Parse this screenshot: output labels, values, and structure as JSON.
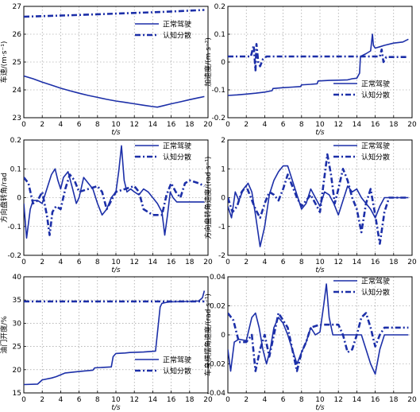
{
  "figure": {
    "colors": {
      "line": "#1c2fa8",
      "axis": "#000000",
      "grid": "#8a8a8a",
      "background": "#ffffff"
    }
  },
  "chart_data": [
    {
      "id": "speed",
      "type": "line",
      "ylabel": "车速/(m·s⁻¹)",
      "xlabel": "t/s",
      "xlim": [
        0,
        20
      ],
      "ylim": [
        23,
        27
      ],
      "xticks": [
        0,
        2,
        4,
        6,
        8,
        10,
        12,
        14,
        16,
        18,
        20
      ],
      "yticks": [
        23,
        24,
        25,
        26,
        27
      ],
      "grid": true,
      "legend": "top-right",
      "series": [
        {
          "name": "正常驾驶",
          "style": "solid",
          "x": [
            0,
            1,
            2,
            3,
            4,
            5,
            6,
            7,
            8,
            9,
            10,
            11,
            12,
            13,
            14,
            14.5,
            15,
            16,
            17,
            18,
            19,
            19.6
          ],
          "y": [
            24.5,
            24.4,
            24.28,
            24.17,
            24.06,
            23.97,
            23.88,
            23.8,
            23.73,
            23.66,
            23.6,
            23.55,
            23.5,
            23.45,
            23.4,
            23.38,
            23.42,
            23.5,
            23.57,
            23.65,
            23.72,
            23.76
          ]
        },
        {
          "name": "认知分散",
          "style": "dashdot",
          "x": [
            0,
            5,
            10,
            15,
            19.6
          ],
          "y": [
            26.63,
            26.68,
            26.74,
            26.8,
            26.87
          ]
        }
      ]
    },
    {
      "id": "accel",
      "type": "line",
      "ylabel": "加速度/(m·s⁻²)",
      "xlabel": "t/s",
      "xlim": [
        0,
        20
      ],
      "ylim": [
        -0.2,
        0.2
      ],
      "xticks": [
        0,
        2,
        4,
        6,
        8,
        10,
        12,
        14,
        16,
        18,
        20
      ],
      "yticks": [
        -0.2,
        -0.1,
        0,
        0.1,
        0.2
      ],
      "ytick_labels": [
        "-0.2",
        "-0.1",
        "0",
        "0.1",
        "0.2"
      ],
      "grid": true,
      "legend": "lower-right",
      "series": [
        {
          "name": "正常驾驶",
          "style": "solid",
          "x": [
            0,
            1,
            2,
            3,
            4,
            4.8,
            4.9,
            6,
            7,
            7.9,
            8,
            9,
            9.7,
            9.8,
            11,
            12,
            13,
            13.5,
            14,
            14.3,
            14.4,
            15,
            15.5,
            15.7,
            15.8,
            16,
            16.5,
            17,
            18,
            19,
            19.6
          ],
          "y": [
            -0.12,
            -0.118,
            -0.115,
            -0.112,
            -0.108,
            -0.103,
            -0.095,
            -0.092,
            -0.09,
            -0.088,
            -0.082,
            -0.08,
            -0.078,
            -0.068,
            -0.066,
            -0.065,
            -0.064,
            -0.06,
            -0.058,
            -0.04,
            0.02,
            0.03,
            0.04,
            0.1,
            0.06,
            0.05,
            0.055,
            0.06,
            0.068,
            0.072,
            0.082
          ]
        },
        {
          "name": "认知分散",
          "style": "dashdot",
          "x": [
            0,
            2.5,
            2.8,
            3,
            3.1,
            3.3,
            3.5,
            3.8,
            4.2,
            5,
            10,
            15,
            16.5,
            16.7,
            16.9,
            17.2,
            19.6
          ],
          "y": [
            0.02,
            0.02,
            0.06,
            -0.03,
            0.065,
            0.0,
            -0.015,
            0.01,
            0.02,
            0.02,
            0.02,
            0.02,
            0.02,
            0.045,
            0.0,
            0.018,
            0.018
          ]
        }
      ]
    },
    {
      "id": "steer_angle",
      "type": "line",
      "ylabel": "方向盘转角/rad",
      "xlabel": "t/s",
      "xlim": [
        0,
        20
      ],
      "ylim": [
        -0.2,
        0.2
      ],
      "xticks": [
        0,
        2,
        4,
        6,
        8,
        10,
        12,
        14,
        16,
        18,
        20
      ],
      "yticks": [
        -0.2,
        -0.1,
        0,
        0.1,
        0.2
      ],
      "ytick_labels": [
        "-0.2",
        "-0.1",
        "0",
        "0.1",
        "0.2"
      ],
      "grid": true,
      "legend": "top-right",
      "series": [
        {
          "name": "正常驾驶",
          "style": "solid",
          "x": [
            0,
            0.3,
            0.7,
            1,
            1.5,
            2,
            2.5,
            3,
            3.4,
            3.7,
            4,
            4.3,
            4.8,
            5.3,
            5.7,
            6,
            6.5,
            7,
            7.5,
            8,
            8.5,
            9,
            9.5,
            10,
            10.3,
            10.6,
            10.9,
            11.2,
            11.6,
            12,
            12.5,
            13,
            13.5,
            14,
            14.5,
            15,
            15.3,
            15.6,
            15.9,
            16.2,
            16.6,
            17,
            18,
            19,
            19.6
          ],
          "y": [
            -0.02,
            -0.14,
            -0.04,
            -0.01,
            -0.01,
            -0.02,
            0.03,
            0.08,
            0.1,
            0.06,
            0.03,
            0.07,
            0.09,
            0.03,
            -0.02,
            0.0,
            0.07,
            0.05,
            0.03,
            -0.02,
            -0.06,
            -0.04,
            0.0,
            0.02,
            0.09,
            0.18,
            0.06,
            0.02,
            0.03,
            0.02,
            0.01,
            0.03,
            0.02,
            0.0,
            -0.02,
            -0.05,
            -0.13,
            -0.06,
            0.02,
            0.0,
            -0.015,
            -0.015,
            -0.015,
            -0.015,
            -0.015
          ]
        },
        {
          "name": "认知分散",
          "style": "dashdot",
          "x": [
            0,
            0.5,
            1,
            1.5,
            2,
            2.5,
            2.8,
            3.1,
            3.5,
            4,
            4.5,
            5,
            5.5,
            6,
            7,
            8,
            8.5,
            9,
            9.5,
            10,
            11,
            12,
            12.5,
            13,
            14,
            14.5,
            15,
            15.5,
            16,
            16.5,
            17,
            17.5,
            18,
            19,
            19.6
          ],
          "y": [
            0.07,
            0.05,
            -0.02,
            -0.01,
            0.02,
            -0.06,
            -0.13,
            -0.05,
            -0.03,
            -0.04,
            0.03,
            0.08,
            0.06,
            0.02,
            0.03,
            0.04,
            0.02,
            -0.04,
            -0.01,
            0.02,
            0.03,
            0.04,
            0.02,
            -0.04,
            -0.06,
            -0.06,
            -0.06,
            0.01,
            0.05,
            0.02,
            0.0,
            0.05,
            0.06,
            0.05,
            0.04
          ]
        }
      ]
    },
    {
      "id": "steer_rate",
      "type": "line",
      "ylabel": "方向盘转角速度/(rad·s⁻¹)",
      "xlabel": "t/s",
      "xlim": [
        0,
        20
      ],
      "ylim": [
        -2,
        2
      ],
      "xticks": [
        0,
        2,
        4,
        6,
        8,
        10,
        12,
        14,
        16,
        18,
        20
      ],
      "yticks": [
        -2,
        -1,
        0,
        1,
        2
      ],
      "ytick_labels": [
        "-2",
        "-1",
        "0",
        "1",
        "2"
      ],
      "grid": true,
      "legend": "top-right",
      "series": [
        {
          "name": "正常驾驶",
          "style": "solid",
          "x": [
            0,
            0.4,
            0.8,
            1.2,
            1.7,
            2.2,
            2.6,
            3,
            3.5,
            4,
            4.5,
            5,
            5.5,
            6,
            6.5,
            7,
            7.5,
            8,
            8.5,
            9,
            9.5,
            10,
            10.5,
            11,
            11.5,
            12,
            12.5,
            13,
            13.5,
            14,
            14.5,
            15,
            15.5,
            16,
            16.5,
            17,
            17.5,
            18,
            19,
            19.6
          ],
          "y": [
            -0.3,
            -0.7,
            0.2,
            -0.1,
            0.3,
            0.5,
            0.2,
            -0.6,
            -1.7,
            -1.0,
            0.1,
            0.6,
            0.9,
            1.1,
            1.1,
            0.6,
            0.1,
            -0.4,
            -0.2,
            0.3,
            0.0,
            -0.3,
            0.2,
            0.1,
            -0.2,
            -0.6,
            -0.1,
            0.4,
            0.2,
            0.3,
            0.0,
            -0.2,
            -0.4,
            -0.7,
            -0.3,
            0.0,
            0.0,
            0.0,
            0.0,
            0.0
          ]
        },
        {
          "name": "认知分散",
          "style": "dashdot",
          "x": [
            0,
            0.5,
            1,
            1.5,
            2,
            2.5,
            3,
            3.5,
            4,
            4.5,
            5,
            5.5,
            6,
            6.5,
            7,
            7.5,
            8,
            8.5,
            9,
            9.5,
            10,
            10.4,
            10.8,
            11.2,
            11.6,
            12,
            12.5,
            13,
            13.5,
            14,
            14.5,
            15,
            15.5,
            16,
            16.5,
            17,
            17.5,
            18,
            19,
            19.6
          ],
          "y": [
            0.0,
            -0.5,
            -0.3,
            0.2,
            0.4,
            0.0,
            -0.4,
            -0.7,
            -0.2,
            0.2,
            0.1,
            -0.1,
            0.3,
            0.8,
            0.4,
            0.0,
            -0.3,
            -0.1,
            0.1,
            -0.2,
            -0.5,
            0.5,
            1.5,
            0.8,
            -0.2,
            0.3,
            1.0,
            0.6,
            0.0,
            -0.4,
            -1.2,
            -0.2,
            0.3,
            -0.6,
            -1.6,
            -0.5,
            0.0,
            0.0,
            0.0,
            0.0
          ]
        }
      ]
    },
    {
      "id": "throttle",
      "type": "line",
      "ylabel": "油门开度/%",
      "xlabel": "t/s",
      "xlim": [
        0,
        20
      ],
      "ylim": [
        15,
        40
      ],
      "xticks": [
        0,
        2,
        4,
        6,
        8,
        10,
        12,
        14,
        16,
        18,
        20
      ],
      "yticks": [
        15,
        20,
        25,
        30,
        35,
        40
      ],
      "grid": true,
      "legend": "lower-right",
      "series": [
        {
          "name": "正常驾驶",
          "style": "solid",
          "x": [
            0,
            1.5,
            2,
            3,
            3.5,
            4.5,
            5,
            6,
            7.5,
            7.7,
            9.5,
            9.7,
            10,
            11,
            11.5,
            13,
            14.3,
            14.8,
            15,
            15.5,
            16,
            18,
            19,
            19.4,
            19.6
          ],
          "y": [
            16.8,
            16.9,
            17.8,
            18.2,
            18.5,
            19.3,
            19.4,
            19.6,
            19.9,
            20.4,
            20.6,
            22.8,
            23.5,
            23.6,
            23.7,
            23.8,
            24.0,
            33.5,
            34.3,
            34.5,
            34.6,
            34.7,
            34.8,
            35.5,
            37.0
          ]
        },
        {
          "name": "认知分散",
          "style": "dashdot",
          "x": [
            0,
            10,
            19.6
          ],
          "y": [
            34.7,
            34.7,
            34.7
          ]
        }
      ]
    },
    {
      "id": "yaw_rate",
      "type": "line",
      "ylabel": "车身横摆角速度/(rad·s⁻¹)",
      "xlabel": "t/s",
      "xlim": [
        0,
        20
      ],
      "ylim": [
        -0.04,
        0.04
      ],
      "xticks": [
        0,
        2,
        4,
        6,
        8,
        10,
        12,
        14,
        16,
        18,
        20
      ],
      "yticks": [
        -0.04,
        -0.02,
        0,
        0.02,
        0.04
      ],
      "ytick_labels": [
        "-0.04",
        "-0.02",
        "0",
        "0.02",
        "0.04"
      ],
      "grid": true,
      "legend": "top-right",
      "series": [
        {
          "name": "正常驾驶",
          "style": "solid",
          "x": [
            0,
            0.3,
            0.7,
            1.2,
            2,
            2.6,
            3,
            3.4,
            3.8,
            4.2,
            4.6,
            5,
            5.5,
            6,
            6.5,
            7,
            7.5,
            8,
            8.5,
            9,
            9.5,
            10,
            10.4,
            10.7,
            11,
            11.4,
            12,
            13,
            14,
            14.5,
            15,
            15.5,
            16,
            16.5,
            17,
            18,
            19,
            19.6
          ],
          "y": [
            -0.01,
            -0.025,
            -0.005,
            -0.003,
            -0.004,
            0.012,
            0.015,
            0.005,
            -0.01,
            -0.02,
            -0.01,
            0.005,
            0.012,
            0.008,
            0.0,
            -0.01,
            -0.02,
            -0.012,
            -0.005,
            0.005,
            0.0,
            0.002,
            0.02,
            0.035,
            0.012,
            0.0,
            0.0,
            0.0,
            0.0,
            0.0,
            -0.01,
            -0.02,
            -0.027,
            -0.01,
            0.0,
            0.0,
            0.0,
            0.0
          ]
        },
        {
          "name": "认知分散",
          "style": "dashdot",
          "x": [
            0,
            0.6,
            1.2,
            2,
            2.6,
            3,
            3.5,
            4,
            4.5,
            5,
            5.5,
            6,
            6.5,
            7,
            7.5,
            8,
            8.5,
            9,
            10,
            11,
            12,
            12.5,
            13,
            13.5,
            14,
            14.5,
            15,
            15.5,
            16,
            16.5,
            17,
            18,
            19,
            19.6
          ],
          "y": [
            0.015,
            0.01,
            -0.005,
            -0.005,
            0.0,
            -0.025,
            -0.01,
            0.0,
            -0.015,
            0.0,
            0.015,
            0.01,
            0.005,
            -0.01,
            -0.025,
            -0.012,
            -0.005,
            0.005,
            0.007,
            0.007,
            0.007,
            0.0,
            -0.012,
            -0.01,
            0.0,
            0.012,
            0.015,
            0.005,
            -0.008,
            0.0,
            0.005,
            0.005,
            0.005,
            0.005
          ]
        }
      ]
    }
  ]
}
